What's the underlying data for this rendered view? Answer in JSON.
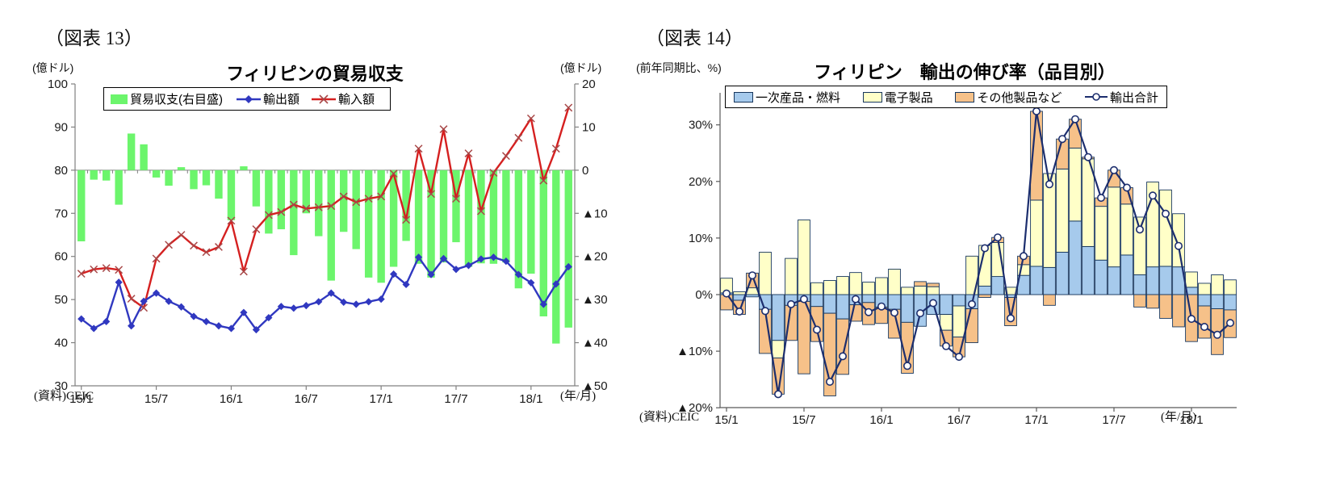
{
  "figure13": {
    "tag": "（図表 13）",
    "title": "フィリピンの貿易収支",
    "unit_left": "(億ドル)",
    "unit_right": "(億ドル)",
    "source": "(資料)CEIC",
    "axis_note": "(年/月)",
    "legend": {
      "balance": "貿易収支(右目盛)",
      "exports": "輸出額",
      "imports": "輸入額"
    },
    "colors": {
      "balance_bar": "#6CF56C",
      "export_line": "#3038C0",
      "import_line": "#D52020",
      "import_marker": "#A84848",
      "axis": "#808080"
    },
    "chart_data": {
      "type": "bar+line combo (bars on right axis, lines on left axis)",
      "title": "フィリピンの貿易収支",
      "categories": [
        "15/1",
        "15/2",
        "15/3",
        "15/4",
        "15/5",
        "15/6",
        "15/7",
        "15/8",
        "15/9",
        "15/10",
        "15/11",
        "15/12",
        "16/1",
        "16/2",
        "16/3",
        "16/4",
        "16/5",
        "16/6",
        "16/7",
        "16/8",
        "16/9",
        "16/10",
        "16/11",
        "16/12",
        "17/1",
        "17/2",
        "17/3",
        "17/4",
        "17/5",
        "17/6",
        "17/7",
        "17/8",
        "17/9",
        "17/10",
        "17/11",
        "17/12",
        "18/1",
        "18/2",
        "18/3",
        "18/4"
      ],
      "x_tick_indices": [
        0,
        6,
        12,
        18,
        24,
        30,
        36
      ],
      "x_tick_labels": [
        "15/1",
        "15/7",
        "16/1",
        "16/7",
        "17/1",
        "17/7",
        "18/1"
      ],
      "left_axis_ticks": [
        100,
        90,
        80,
        70,
        60,
        50,
        40,
        30
      ],
      "left_axis_range": [
        30,
        100
      ],
      "right_axis_tick_values": [
        20,
        10,
        0,
        -10,
        -20,
        -30,
        -40,
        -50
      ],
      "right_axis_tick_labels": [
        "20",
        "10",
        "0",
        "▲10",
        "▲20",
        "▲30",
        "▲40",
        "▲50"
      ],
      "right_axis_range": [
        -50,
        20
      ],
      "grid": false,
      "legend_position": "top",
      "series": [
        {
          "name": "貿易収支(右目盛)",
          "type": "bar",
          "axis": "right",
          "values": [
            -16.5,
            -2.2,
            -2.4,
            -8.0,
            8.5,
            6.0,
            -1.7,
            -3.6,
            0.7,
            -4.4,
            -3.5,
            -6.6,
            -11.6,
            0.9,
            -8.4,
            -14.7,
            -13.7,
            -19.7,
            -10.0,
            -15.3,
            -25.6,
            -14.3,
            -18.3,
            -24.9,
            -26.1,
            -22.4,
            -16.4,
            -21.7,
            -24.9,
            -21.4,
            -16.7,
            -22.4,
            -21.6,
            -21.7,
            -21.4,
            -27.4,
            -24.0,
            -33.9,
            -40.2,
            -36.5
          ]
        },
        {
          "name": "輸出額",
          "type": "line",
          "axis": "left",
          "marker": "diamond",
          "values": [
            45.5,
            43.3,
            44.9,
            54.0,
            43.9,
            49.6,
            51.5,
            49.6,
            48.3,
            46.1,
            44.9,
            43.9,
            43.3,
            47.0,
            43.0,
            45.8,
            48.4,
            48.0,
            48.6,
            49.5,
            51.5,
            49.4,
            48.9,
            49.5,
            50.1,
            55.9,
            53.5,
            59.8,
            55.8,
            59.5,
            57.0,
            57.9,
            59.4,
            59.8,
            58.9,
            55.8,
            53.9,
            48.9,
            53.6,
            57.6
          ]
        },
        {
          "name": "輸入額",
          "type": "line",
          "axis": "left",
          "marker": "x",
          "values": [
            56.0,
            57.0,
            57.3,
            56.9,
            50.2,
            48.1,
            59.5,
            62.7,
            65.0,
            62.5,
            61.0,
            62.2,
            68.3,
            56.5,
            66.3,
            69.6,
            70.3,
            72.0,
            71.1,
            71.4,
            71.7,
            73.9,
            72.6,
            73.4,
            73.9,
            79.2,
            68.5,
            85.0,
            74.5,
            89.5,
            73.4,
            83.9,
            70.5,
            79.4,
            83.3,
            87.5,
            92.0,
            77.6,
            85.0,
            94.5
          ]
        }
      ]
    }
  },
  "figure14": {
    "tag": "（図表 14）",
    "title": "フィリピン　輸出の伸び率（品目別）",
    "unit": "(前年同期比、%)",
    "source": "(資料)CEIC",
    "axis_note": "(年/月)",
    "legend": {
      "primary": "一次産品・燃料",
      "electronics": "電子製品",
      "others": "その他製品など",
      "total": "輸出合計"
    },
    "colors": {
      "primary_bar": "#A6CAEC",
      "electronics_bar": "#FFFFC8",
      "others_bar": "#F6C189",
      "bar_border": "#17375E",
      "total_line": "#1C2E6E",
      "axis": "#595959"
    },
    "chart_data": {
      "type": "stacked bar + line",
      "title": "フィリピン　輸出の伸び率（品目別）",
      "categories": [
        "15/1",
        "15/2",
        "15/3",
        "15/4",
        "15/5",
        "15/6",
        "15/7",
        "15/8",
        "15/9",
        "15/10",
        "15/11",
        "15/12",
        "16/1",
        "16/2",
        "16/3",
        "16/4",
        "16/5",
        "16/6",
        "16/7",
        "16/8",
        "16/9",
        "16/10",
        "16/11",
        "16/12",
        "17/1",
        "17/2",
        "17/3",
        "17/4",
        "17/5",
        "17/6",
        "17/7",
        "17/8",
        "17/9",
        "17/10",
        "17/11",
        "17/12",
        "18/1",
        "18/2",
        "18/3",
        "18/4"
      ],
      "x_tick_indices": [
        0,
        6,
        12,
        18,
        24,
        30,
        36
      ],
      "x_tick_labels": [
        "15/1",
        "15/7",
        "16/1",
        "16/7",
        "17/1",
        "17/7",
        "18/1"
      ],
      "y_axis_tick_values": [
        30,
        20,
        10,
        0,
        -10,
        -20
      ],
      "y_axis_tick_labels": [
        "30%",
        "20%",
        "10%",
        "0%",
        "▲10%",
        "▲20%"
      ],
      "y_axis_range": [
        -20,
        30
      ],
      "grid": false,
      "legend_position": "top",
      "series": [
        {
          "name": "一次産品・燃料",
          "type": "bar-stack",
          "values": [
            0.3,
            -1.0,
            -0.4,
            -2.6,
            -8.1,
            -1.9,
            -1.2,
            -2.1,
            -3.3,
            -4.3,
            -1.8,
            -1.4,
            -2.2,
            -2.6,
            -4.9,
            -5.6,
            -3.5,
            -3.5,
            -2.0,
            -2.5,
            1.5,
            3.2,
            -0.5,
            3.4,
            5.0,
            4.8,
            7.5,
            13.0,
            8.5,
            6.1,
            4.9,
            7.0,
            3.5,
            4.9,
            5.0,
            4.9,
            1.3,
            -2.0,
            -2.5,
            -2.7
          ]
        },
        {
          "name": "電子製品",
          "type": "bar-stack",
          "values": [
            2.6,
            0.5,
            1.2,
            7.5,
            -3.1,
            6.4,
            13.2,
            2.1,
            2.5,
            3.2,
            3.9,
            2.2,
            3.0,
            4.5,
            1.3,
            1.5,
            1.4,
            -2.8,
            -5.5,
            6.8,
            7.2,
            6.0,
            1.3,
            1.9,
            11.7,
            16.6,
            14.7,
            12.9,
            15.5,
            9.5,
            14.1,
            9.0,
            10.2,
            15.0,
            13.5,
            9.4,
            2.7,
            2.0,
            3.5,
            2.6
          ]
        },
        {
          "name": "その他製品など",
          "type": "bar-stack",
          "values": [
            -2.7,
            -2.5,
            2.6,
            -7.8,
            -6.4,
            -6.2,
            -12.8,
            -6.2,
            -14.6,
            -9.8,
            -2.9,
            -3.9,
            -2.9,
            -5.1,
            -9.0,
            0.8,
            0.6,
            -2.8,
            -3.5,
            -6.0,
            -0.5,
            0.9,
            -5.0,
            1.5,
            15.7,
            -1.9,
            5.3,
            5.1,
            0.3,
            1.5,
            3.0,
            2.9,
            -2.2,
            -2.4,
            -4.2,
            -5.7,
            -8.3,
            -5.7,
            -8.1,
            -4.9
          ]
        },
        {
          "name": "輸出合計",
          "type": "line",
          "marker": "circle",
          "values": [
            0.2,
            -3.0,
            3.4,
            -2.9,
            -17.6,
            -1.7,
            -0.8,
            -6.2,
            -15.4,
            -10.9,
            -0.8,
            -3.1,
            -2.1,
            -3.2,
            -12.6,
            -3.3,
            -1.5,
            -9.1,
            -11.0,
            -1.7,
            8.2,
            10.1,
            -4.2,
            6.8,
            32.4,
            19.5,
            27.5,
            31.0,
            24.3,
            17.1,
            22.0,
            18.9,
            11.5,
            17.5,
            14.3,
            8.6,
            -4.3,
            -5.7,
            -7.1,
            -5.0
          ]
        }
      ]
    }
  }
}
